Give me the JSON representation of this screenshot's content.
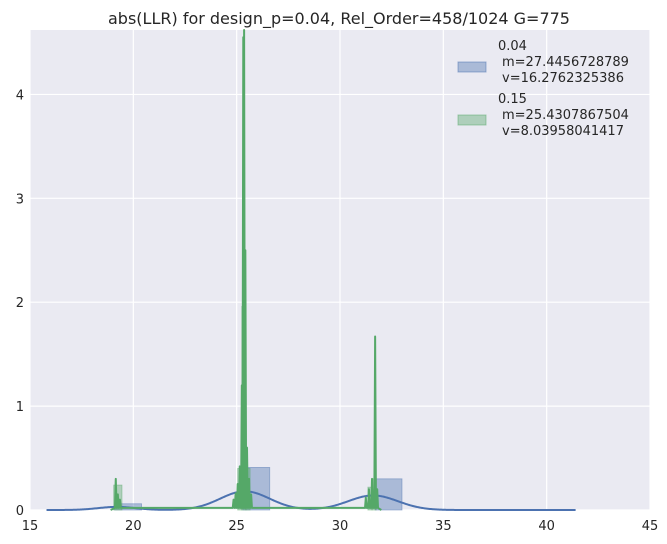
{
  "chart_data": {
    "type": "histogram+kde",
    "title": "abs(LLR) for design_p=0.04, Rel_Order=458/1024 G=775",
    "xlabel": "",
    "ylabel": "",
    "xlim": [
      15,
      45
    ],
    "ylim": [
      0,
      4.62
    ],
    "xticks": [
      "15",
      "20",
      "25",
      "30",
      "35",
      "40",
      "45"
    ],
    "yticks": [
      "0",
      "1",
      "2",
      "3",
      "4"
    ],
    "grid": true,
    "legend_position": "top-right",
    "colors": {
      "background": "#EAEAF2",
      "grid": "#FFFFFF",
      "blue": "#4C72B0",
      "green": "#55A868"
    },
    "series": [
      {
        "name_lines": [
          "0.04",
          "m=27.4456728789",
          "v=16.2762325386"
        ],
        "color": "#4C72B0",
        "hist_bins": [
          {
            "x0": 19.1,
            "x1": 20.4,
            "height": 0.06
          },
          {
            "x0": 25.3,
            "x1": 26.6,
            "height": 0.41
          },
          {
            "x0": 31.7,
            "x1": 33.0,
            "height": 0.3
          }
        ],
        "kde_peaks": [
          {
            "mu": 19.2,
            "sigma": 0.9,
            "amp": 0.03
          },
          {
            "mu": 25.4,
            "sigma": 1.2,
            "amp": 0.18
          },
          {
            "mu": 31.6,
            "sigma": 1.2,
            "amp": 0.14
          }
        ],
        "kde_range": [
          15.8,
          41.4
        ]
      },
      {
        "name_lines": [
          "0.15",
          "m=25.4307867504",
          "v=8.03958041417"
        ],
        "color": "#55A868",
        "hist_bins": [
          {
            "x0": 19.05,
            "x1": 19.45,
            "height": 0.24
          },
          {
            "x0": 25.05,
            "x1": 25.25,
            "height": 0.4
          },
          {
            "x0": 25.25,
            "x1": 25.45,
            "height": 1.96
          },
          {
            "x0": 25.45,
            "x1": 25.65,
            "height": 0.4
          },
          {
            "x0": 31.35,
            "x1": 31.55,
            "height": 0.22
          },
          {
            "x0": 31.55,
            "x1": 31.75,
            "height": 0.3
          }
        ],
        "kde_spikes": [
          {
            "x": 19.15,
            "y": 0.3
          },
          {
            "x": 19.25,
            "y": 0.15
          },
          {
            "x": 19.35,
            "y": 0.1
          },
          {
            "x": 24.85,
            "y": 0.1
          },
          {
            "x": 24.95,
            "y": 0.16
          },
          {
            "x": 25.05,
            "y": 0.25
          },
          {
            "x": 25.15,
            "y": 0.42
          },
          {
            "x": 25.25,
            "y": 1.2
          },
          {
            "x": 25.32,
            "y": 4.55
          },
          {
            "x": 25.36,
            "y": 4.62
          },
          {
            "x": 25.42,
            "y": 2.5
          },
          {
            "x": 25.5,
            "y": 0.6
          },
          {
            "x": 25.6,
            "y": 0.3
          },
          {
            "x": 25.7,
            "y": 0.15
          },
          {
            "x": 31.25,
            "y": 0.12
          },
          {
            "x": 31.4,
            "y": 0.2
          },
          {
            "x": 31.55,
            "y": 0.3
          },
          {
            "x": 31.7,
            "y": 1.67
          },
          {
            "x": 31.8,
            "y": 0.2
          }
        ],
        "kde_range": [
          18.9,
          32.0
        ]
      }
    ]
  }
}
